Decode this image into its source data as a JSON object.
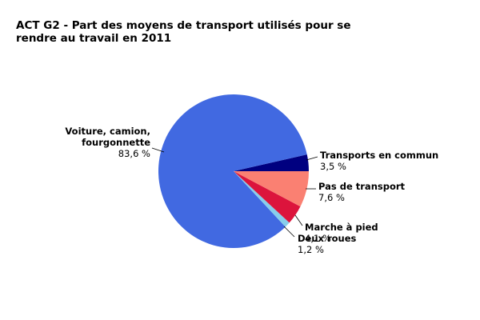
{
  "chart_data": {
    "type": "pie",
    "title": "ACT G2 - Part des moyens de transport utilisés pour se rendre au travail en 2011",
    "start_angle_deg": 0,
    "direction": "counterclockwise",
    "slices": [
      {
        "name_lines": [
          "Transports en commun"
        ],
        "value": 3.5,
        "value_label": "3,5 %",
        "color": "#000080"
      },
      {
        "name_lines": [
          "Voiture, camion,",
          "fourgonnette"
        ],
        "value": 83.6,
        "value_label": "83,6 %",
        "color": "#4169e1"
      },
      {
        "name_lines": [
          "Deux roues"
        ],
        "value": 1.2,
        "value_label": "1,2 %",
        "color": "#87ceeb"
      },
      {
        "name_lines": [
          "Marche à pied"
        ],
        "value": 4.1,
        "value_label": "4,1 %",
        "color": "#dc143c"
      },
      {
        "name_lines": [
          "Pas de transport"
        ],
        "value": 7.6,
        "value_label": "7,6 %",
        "color": "#fa8072"
      }
    ]
  }
}
